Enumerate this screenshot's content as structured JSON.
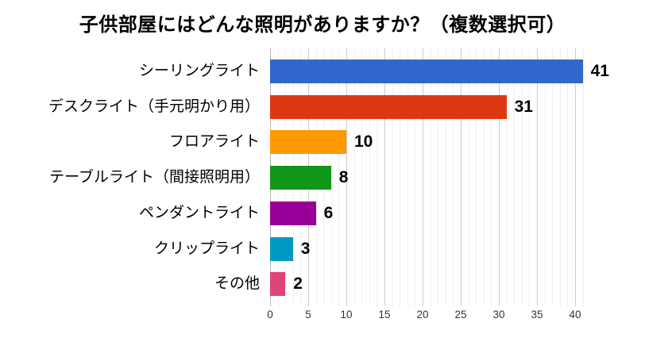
{
  "page": {
    "background": "#ffffff"
  },
  "chart_data": {
    "type": "bar",
    "orientation": "horizontal",
    "title": "子供部屋にはどんな照明がありますか？（複数選択可）",
    "categories": [
      "シーリングライト",
      "デスクライト（手元明かり用）",
      "フロアライト",
      "テーブルライト（間接照明用）",
      "ペンダントライト",
      "クリップライト",
      "その他"
    ],
    "values": [
      41,
      31,
      10,
      8,
      6,
      3,
      2
    ],
    "bar_colors": [
      "#3366cc",
      "#dc3912",
      "#ff9900",
      "#109618",
      "#990099",
      "#0099c6",
      "#dd4477"
    ],
    "xlabel": "",
    "ylabel": "",
    "xlim": [
      0,
      41.7
    ],
    "x_ticks": [
      0,
      5,
      10,
      15,
      20,
      25,
      30,
      35,
      40
    ],
    "gridlines": {
      "minor_step": 1,
      "major_step": 5,
      "max_line": 41,
      "minor_color": "#f0f0f0",
      "major_color": "#cccccc",
      "baseline_color": "#b5b5b5"
    },
    "legend_position": "none",
    "data_labels_shown": true,
    "text_color": "#000000",
    "axis_text_color": "#333333"
  }
}
